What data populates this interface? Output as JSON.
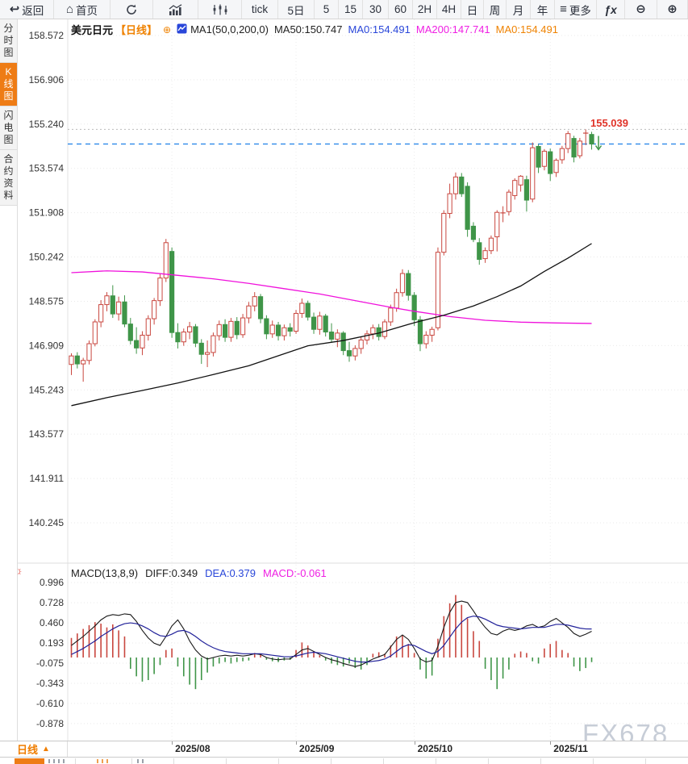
{
  "toolbar": {
    "items": [
      {
        "name": "back-button",
        "icon": "↩",
        "label": "返回"
      },
      {
        "name": "home-button",
        "icon": "⌂",
        "label": "首页"
      },
      {
        "name": "refresh-button",
        "svg": "refresh"
      },
      {
        "name": "bar-chart-button",
        "svg": "bars"
      },
      {
        "name": "kline-chart-button",
        "svg": "kline"
      },
      {
        "name": "tick-button",
        "label": "tick"
      },
      {
        "name": "period-5d-button",
        "label": "5日"
      },
      {
        "name": "period-5m-button",
        "label": "5"
      },
      {
        "name": "period-15m-button",
        "label": "15"
      },
      {
        "name": "period-30m-button",
        "label": "30"
      },
      {
        "name": "period-60m-button",
        "label": "60"
      },
      {
        "name": "period-2h-button",
        "label": "2H"
      },
      {
        "name": "period-4h-button",
        "label": "4H"
      },
      {
        "name": "period-day-button",
        "label": "日"
      },
      {
        "name": "period-week-button",
        "label": "周"
      },
      {
        "name": "period-month-button",
        "label": "月"
      },
      {
        "name": "period-year-button",
        "label": "年"
      },
      {
        "name": "more-button",
        "icon": "≡",
        "label": "更多"
      },
      {
        "name": "indicator-fx-button",
        "label": "ƒx",
        "fx": true
      },
      {
        "name": "zoom-out-button",
        "icon": "⊖"
      },
      {
        "name": "zoom-in-button",
        "icon": "⊕"
      }
    ]
  },
  "sidebar": {
    "items": [
      {
        "label": "分时图",
        "active": false
      },
      {
        "label": "K线图",
        "active": true
      },
      {
        "label": "闪电图",
        "active": false
      },
      {
        "label": "合约资料",
        "active": false
      }
    ]
  },
  "chart_header": {
    "symbol": "美元日元",
    "period_tag": "【日线】",
    "plus": "⊕",
    "ma_settings": "MA1(50,0,200,0)",
    "ma50": "MA50:150.747",
    "ma0_blue": "MA0:154.491",
    "ma200": "MA200:147.741",
    "ma0_orange": "MA0:154.491"
  },
  "macd_header": {
    "title": "MACD(13,8,9)",
    "diff": "DIFF:0.349",
    "dea": "DEA:0.379",
    "macd": "MACD:-0.061"
  },
  "icons": {
    "macd_settings": "☼"
  },
  "price_marker": {
    "label": "155.039"
  },
  "xaxis": {
    "tab_label": "日线",
    "tab_arrow": "▲"
  },
  "watermark": {
    "text": "FX678"
  },
  "colors": {
    "up": "#c9473f",
    "down": "#3f9548",
    "ma50": "#111111",
    "ma200": "#f011dc",
    "current_price_line": "#1e80e8",
    "dea": "#22229a",
    "diff": "#1a1a1a",
    "accent_orange": "#ee7c15",
    "label_red": "#e03328"
  },
  "chart_data": {
    "type": "candlestick",
    "title": "USD/JPY daily candlestick with MA(50,200) overlay and MACD(13,8,9)",
    "price_axis": {
      "ticks": [
        "158.572",
        "156.906",
        "155.240",
        "153.574",
        "151.908",
        "150.242",
        "148.575",
        "146.909",
        "145.243",
        "143.577",
        "141.911",
        "140.245"
      ]
    },
    "macd_axis": {
      "ticks": [
        "0.996",
        "0.728",
        "0.460",
        "0.193",
        "-0.075",
        "-0.343",
        "-0.610",
        "-0.878"
      ]
    },
    "x_ticks": [
      {
        "label": "2025/08",
        "i": 17
      },
      {
        "label": "2025/09",
        "i": 38
      },
      {
        "label": "2025/10",
        "i": 58
      },
      {
        "label": "2025/11",
        "i": 81
      }
    ],
    "current_price": 154.491,
    "high_marker_price": 155.039,
    "candles": [
      [
        146.2,
        146.62,
        145.8,
        146.52
      ],
      [
        146.52,
        146.66,
        146.05,
        146.22
      ],
      [
        146.22,
        146.45,
        145.55,
        146.35
      ],
      [
        146.35,
        147.1,
        146.2,
        146.98
      ],
      [
        146.98,
        147.9,
        146.88,
        147.8
      ],
      [
        147.8,
        148.62,
        147.6,
        148.45
      ],
      [
        148.45,
        148.92,
        148.2,
        148.78
      ],
      [
        148.78,
        149.18,
        147.95,
        148.1
      ],
      [
        148.1,
        148.75,
        147.85,
        148.55
      ],
      [
        148.55,
        148.8,
        147.6,
        147.72
      ],
      [
        147.72,
        147.95,
        146.95,
        147.1
      ],
      [
        147.1,
        147.6,
        146.6,
        146.82
      ],
      [
        146.82,
        147.45,
        146.55,
        147.3
      ],
      [
        147.3,
        148.05,
        147.1,
        147.92
      ],
      [
        147.92,
        148.7,
        147.7,
        148.6
      ],
      [
        148.6,
        149.6,
        148.4,
        149.45
      ],
      [
        149.45,
        150.92,
        149.3,
        150.78
      ],
      [
        150.45,
        150.6,
        147.2,
        147.4
      ],
      [
        147.4,
        147.75,
        146.8,
        147.05
      ],
      [
        147.05,
        147.55,
        146.9,
        147.42
      ],
      [
        147.42,
        147.8,
        147.15,
        147.62
      ],
      [
        147.62,
        147.72,
        146.85,
        147.0
      ],
      [
        147.0,
        147.15,
        146.22,
        146.58
      ],
      [
        146.58,
        147.1,
        146.1,
        146.65
      ],
      [
        146.65,
        147.4,
        146.5,
        147.28
      ],
      [
        147.28,
        147.85,
        147.1,
        147.7
      ],
      [
        147.7,
        147.9,
        147.05,
        147.22
      ],
      [
        147.22,
        147.95,
        147.05,
        147.82
      ],
      [
        147.82,
        147.98,
        147.15,
        147.32
      ],
      [
        147.32,
        148.1,
        147.2,
        147.95
      ],
      [
        147.95,
        148.55,
        147.75,
        148.4
      ],
      [
        148.4,
        148.92,
        148.2,
        148.75
      ],
      [
        148.75,
        148.85,
        147.75,
        147.92
      ],
      [
        147.92,
        148.05,
        147.15,
        147.35
      ],
      [
        147.35,
        147.85,
        147.2,
        147.68
      ],
      [
        147.68,
        147.8,
        147.1,
        147.28
      ],
      [
        147.28,
        147.7,
        147.1,
        147.58
      ],
      [
        147.58,
        147.75,
        147.25,
        147.45
      ],
      [
        147.45,
        148.25,
        147.35,
        148.12
      ],
      [
        148.12,
        148.68,
        147.95,
        148.5
      ],
      [
        148.5,
        148.6,
        147.85,
        147.98
      ],
      [
        147.98,
        148.15,
        147.35,
        147.52
      ],
      [
        147.52,
        148.18,
        147.32,
        148.02
      ],
      [
        148.02,
        148.1,
        147.25,
        147.42
      ],
      [
        147.42,
        147.75,
        147.02,
        147.15
      ],
      [
        147.15,
        147.52,
        146.85,
        147.38
      ],
      [
        147.38,
        147.45,
        146.55,
        146.72
      ],
      [
        146.72,
        147.05,
        146.3,
        146.52
      ],
      [
        146.52,
        146.92,
        146.35,
        146.8
      ],
      [
        146.8,
        147.25,
        146.6,
        147.12
      ],
      [
        147.12,
        147.48,
        146.95,
        147.35
      ],
      [
        147.35,
        147.7,
        147.15,
        147.58
      ],
      [
        147.58,
        147.72,
        147.1,
        147.25
      ],
      [
        147.25,
        147.9,
        147.15,
        147.8
      ],
      [
        147.8,
        148.45,
        147.65,
        148.32
      ],
      [
        148.32,
        149.05,
        148.18,
        148.9
      ],
      [
        148.9,
        149.78,
        148.75,
        149.62
      ],
      [
        149.62,
        149.75,
        148.6,
        148.8
      ],
      [
        148.8,
        148.92,
        147.65,
        147.88
      ],
      [
        147.88,
        148.02,
        146.7,
        146.98
      ],
      [
        146.98,
        147.45,
        146.8,
        147.3
      ],
      [
        147.3,
        147.62,
        147.05,
        147.52
      ],
      [
        147.58,
        150.6,
        147.48,
        150.42
      ],
      [
        150.42,
        152.0,
        150.3,
        151.88
      ],
      [
        151.88,
        153.0,
        151.7,
        152.62
      ],
      [
        152.62,
        153.42,
        152.4,
        153.25
      ],
      [
        153.25,
        153.4,
        152.5,
        152.62
      ],
      [
        152.9,
        153.05,
        151.0,
        151.28
      ],
      [
        151.4,
        151.55,
        150.8,
        150.9
      ],
      [
        150.78,
        150.95,
        149.95,
        150.15
      ],
      [
        150.18,
        150.6,
        150.02,
        150.48
      ],
      [
        150.48,
        151.05,
        150.35,
        150.95
      ],
      [
        151.0,
        152.0,
        150.45,
        151.92
      ],
      [
        151.9,
        152.15,
        151.55,
        151.9
      ],
      [
        151.95,
        152.78,
        151.8,
        152.68
      ],
      [
        152.55,
        153.2,
        152.4,
        153.12
      ],
      [
        152.95,
        153.32,
        152.7,
        153.28
      ],
      [
        153.15,
        153.3,
        151.95,
        152.38
      ],
      [
        152.42,
        154.55,
        152.3,
        154.35
      ],
      [
        154.4,
        154.48,
        153.4,
        153.62
      ],
      [
        153.65,
        154.3,
        153.5,
        154.22
      ],
      [
        154.2,
        154.32,
        153.1,
        153.38
      ],
      [
        153.42,
        153.95,
        153.25,
        153.88
      ],
      [
        153.9,
        154.42,
        153.75,
        154.32
      ],
      [
        154.32,
        154.98,
        154.15,
        154.88
      ],
      [
        154.7,
        154.8,
        153.8,
        154.0
      ],
      [
        154.05,
        154.72,
        153.95,
        154.6
      ],
      [
        154.9,
        155.039,
        154.45,
        154.9
      ],
      [
        154.85,
        154.95,
        154.28,
        154.491
      ]
    ],
    "ma50_points": [
      [
        0,
        144.65
      ],
      [
        6,
        144.95
      ],
      [
        12,
        145.22
      ],
      [
        18,
        145.5
      ],
      [
        24,
        145.82
      ],
      [
        30,
        146.15
      ],
      [
        36,
        146.6
      ],
      [
        40,
        146.9
      ],
      [
        46,
        147.1
      ],
      [
        52,
        147.38
      ],
      [
        58,
        147.77
      ],
      [
        63,
        148.05
      ],
      [
        68,
        148.4
      ],
      [
        72,
        148.75
      ],
      [
        76,
        149.15
      ],
      [
        80,
        149.7
      ],
      [
        84,
        150.2
      ],
      [
        88,
        150.747
      ]
    ],
    "ma200_points": [
      [
        0,
        149.65
      ],
      [
        6,
        149.72
      ],
      [
        12,
        149.68
      ],
      [
        18,
        149.55
      ],
      [
        24,
        149.42
      ],
      [
        30,
        149.25
      ],
      [
        36,
        149.05
      ],
      [
        42,
        148.85
      ],
      [
        48,
        148.6
      ],
      [
        54,
        148.35
      ],
      [
        58,
        148.2
      ],
      [
        64,
        148.0
      ],
      [
        70,
        147.86
      ],
      [
        76,
        147.79
      ],
      [
        82,
        147.76
      ],
      [
        88,
        147.741
      ]
    ],
    "macd": {
      "hist": [
        0.26,
        0.32,
        0.38,
        0.43,
        0.47,
        0.45,
        0.4,
        0.44,
        0.36,
        0.28,
        -0.15,
        -0.25,
        -0.32,
        -0.3,
        -0.22,
        -0.1,
        0.1,
        0.12,
        -0.12,
        -0.25,
        -0.36,
        -0.42,
        -0.3,
        -0.2,
        -0.12,
        -0.08,
        -0.06,
        -0.08,
        -0.06,
        -0.05,
        -0.04,
        0.06,
        0.04,
        -0.03,
        -0.05,
        -0.06,
        -0.04,
        -0.03,
        0.1,
        0.2,
        0.16,
        0.08,
        0.03,
        -0.04,
        -0.08,
        -0.1,
        -0.12,
        -0.08,
        -0.14,
        -0.16,
        -0.1,
        0.05,
        0.07,
        0.05,
        0.16,
        0.28,
        0.3,
        0.18,
        0.06,
        -0.16,
        -0.28,
        -0.24,
        0.25,
        0.55,
        0.72,
        0.83,
        0.7,
        0.52,
        0.35,
        0.22,
        -0.15,
        -0.3,
        -0.42,
        -0.28,
        -0.16,
        0.05,
        0.08,
        0.06,
        -0.05,
        -0.08,
        0.12,
        0.18,
        0.22,
        0.1,
        0.06,
        -0.12,
        -0.18,
        -0.14,
        -0.061
      ],
      "diff": [
        0.16,
        0.22,
        0.28,
        0.35,
        0.42,
        0.5,
        0.55,
        0.57,
        0.56,
        0.58,
        0.57,
        0.48,
        0.36,
        0.26,
        0.19,
        0.16,
        0.28,
        0.42,
        0.5,
        0.38,
        0.22,
        0.1,
        0.02,
        -0.02,
        0.0,
        0.02,
        0.03,
        0.02,
        0.03,
        0.02,
        0.03,
        0.05,
        0.04,
        0.0,
        -0.02,
        -0.03,
        -0.02,
        -0.02,
        0.04,
        0.1,
        0.12,
        0.08,
        0.04,
        0.0,
        -0.03,
        -0.05,
        -0.08,
        -0.1,
        -0.12,
        -0.1,
        -0.06,
        -0.02,
        0.01,
        0.04,
        0.14,
        0.24,
        0.3,
        0.24,
        0.12,
        -0.02,
        -0.06,
        -0.04,
        0.15,
        0.4,
        0.6,
        0.73,
        0.75,
        0.73,
        0.62,
        0.5,
        0.4,
        0.32,
        0.3,
        0.35,
        0.38,
        0.36,
        0.38,
        0.42,
        0.44,
        0.4,
        0.42,
        0.48,
        0.52,
        0.46,
        0.4,
        0.32,
        0.28,
        0.31,
        0.349
      ],
      "dea": [
        0.04,
        0.08,
        0.12,
        0.17,
        0.22,
        0.28,
        0.33,
        0.38,
        0.42,
        0.45,
        0.46,
        0.45,
        0.42,
        0.38,
        0.33,
        0.29,
        0.28,
        0.31,
        0.35,
        0.36,
        0.33,
        0.28,
        0.22,
        0.17,
        0.13,
        0.1,
        0.08,
        0.07,
        0.06,
        0.05,
        0.05,
        0.05,
        0.05,
        0.04,
        0.03,
        0.02,
        0.01,
        0.01,
        0.02,
        0.04,
        0.06,
        0.07,
        0.06,
        0.05,
        0.03,
        0.01,
        -0.01,
        -0.03,
        -0.05,
        -0.06,
        -0.06,
        -0.05,
        -0.04,
        -0.02,
        0.02,
        0.08,
        0.14,
        0.17,
        0.16,
        0.12,
        0.08,
        0.05,
        0.08,
        0.16,
        0.27,
        0.38,
        0.47,
        0.53,
        0.55,
        0.54,
        0.51,
        0.47,
        0.43,
        0.41,
        0.4,
        0.39,
        0.38,
        0.39,
        0.4,
        0.4,
        0.4,
        0.42,
        0.44,
        0.44,
        0.43,
        0.41,
        0.39,
        0.38,
        0.379
      ]
    },
    "markers": {
      "high_cross_index": 87,
      "down_arrow_index": 88
    }
  }
}
